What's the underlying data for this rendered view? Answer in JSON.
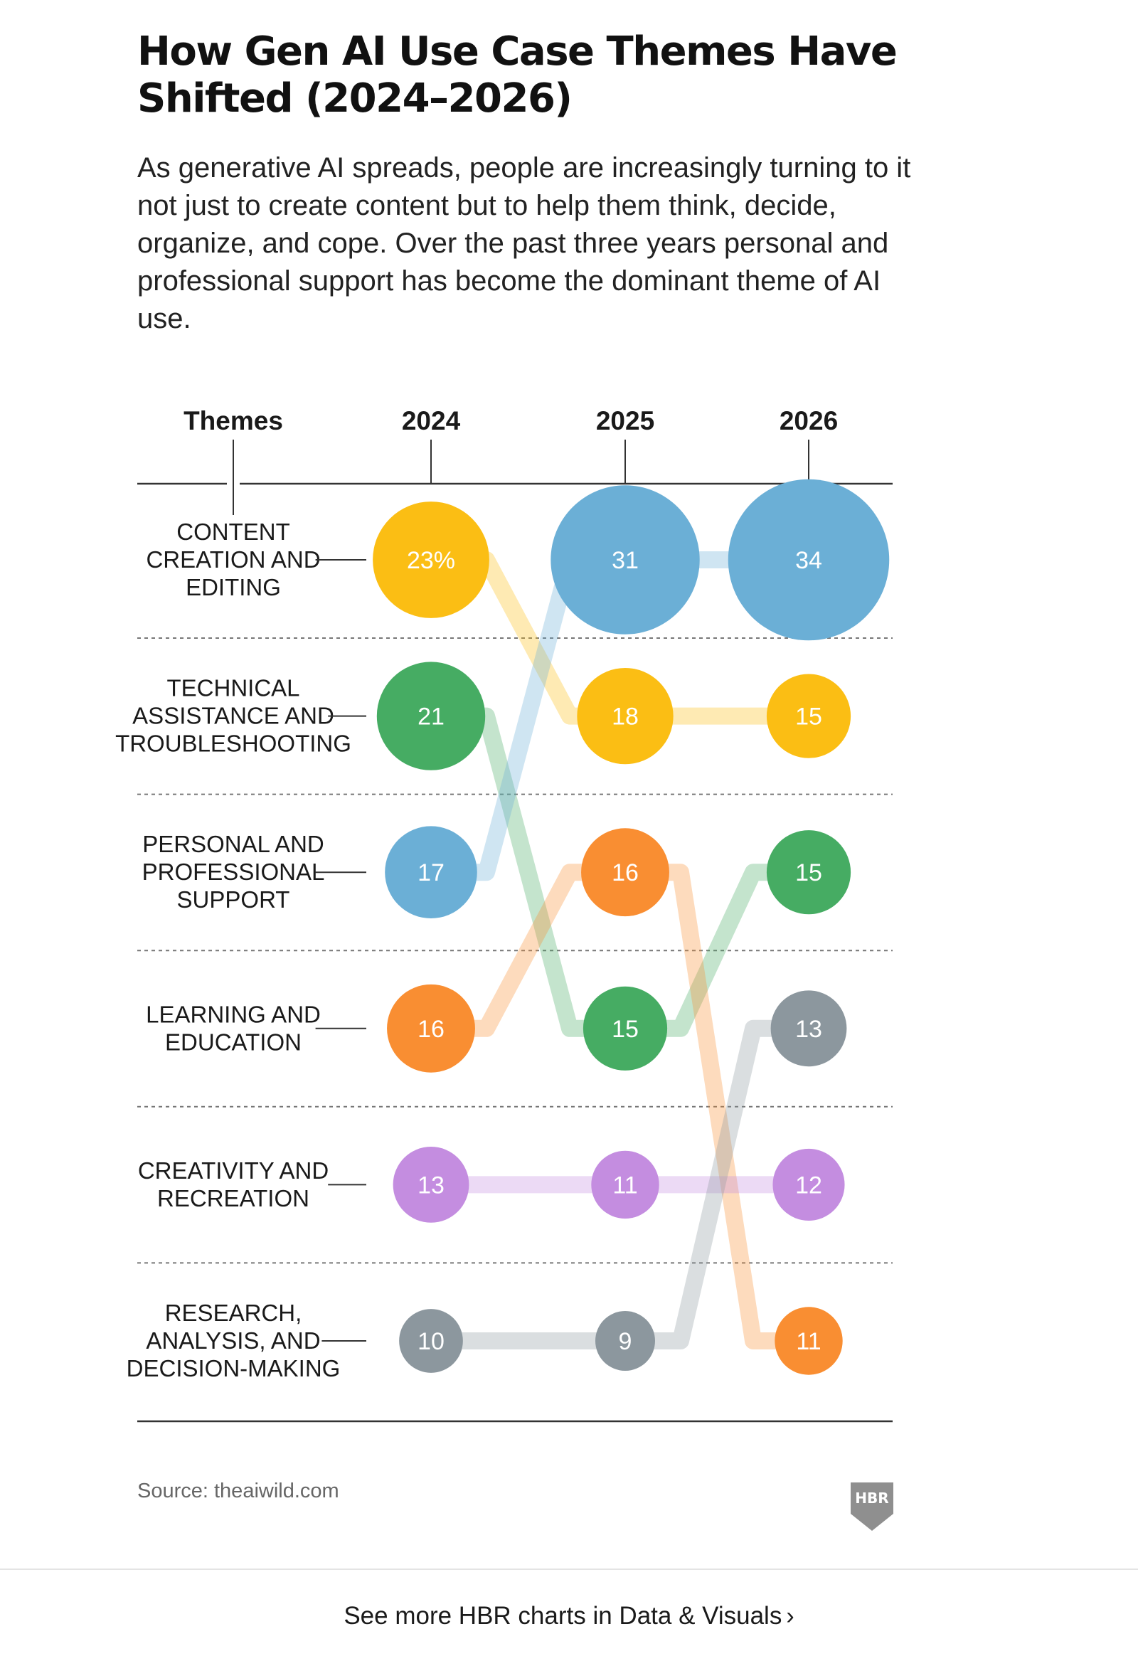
{
  "title": "How Gen AI Use Case Themes Have Shifted (2024–2026)",
  "subtitle": "As generative AI spreads, people are increasingly turning to it not just to create content but to help them think, decide, organize, and cope. Over the past three years personal and professional support has become the dominant theme of AI use.",
  "source": "Source: theaiwild.com",
  "logo_text": "HBR",
  "footer_link": "See more HBR charts in Data & Visuals",
  "footer_chevron": "›",
  "colors": {
    "yellow": "#FBBE14",
    "blue": "#6BAFD6",
    "green": "#46AC63",
    "orange": "#F98E32",
    "purple": "#C48DE0",
    "gray": "#8C979E"
  },
  "chart_data": {
    "type": "table",
    "column_header": "Themes",
    "years": [
      "2024",
      "2025",
      "2026"
    ],
    "ranks": [
      "CONTENT CREATION AND EDITING",
      "TECHNICAL ASSISTANCE AND TROUBLESHOOTING",
      "PERSONAL AND PROFESSIONAL SUPPORT",
      "LEARNING AND EDUCATION",
      "CREATIVITY AND RECREATION",
      "RESEARCH, ANALYSIS, AND DECISION-MAKING"
    ],
    "series": [
      {
        "color": "yellow",
        "values": [
          23,
          18,
          15
        ],
        "labels": [
          "23%",
          "18",
          "15"
        ],
        "rank": [
          1,
          2,
          2
        ]
      },
      {
        "color": "green",
        "values": [
          21,
          15,
          15
        ],
        "labels": [
          "21",
          "15",
          "15"
        ],
        "rank": [
          2,
          4,
          3
        ]
      },
      {
        "color": "blue",
        "values": [
          17,
          31,
          34
        ],
        "labels": [
          "17",
          "31",
          "34"
        ],
        "rank": [
          3,
          1,
          1
        ]
      },
      {
        "color": "orange",
        "values": [
          16,
          16,
          11
        ],
        "labels": [
          "16",
          "16",
          "11"
        ],
        "rank": [
          4,
          3,
          6
        ]
      },
      {
        "color": "purple",
        "values": [
          13,
          11,
          12
        ],
        "labels": [
          "13",
          "11",
          "12"
        ],
        "rank": [
          5,
          5,
          5
        ]
      },
      {
        "color": "gray",
        "values": [
          10,
          9,
          13
        ],
        "labels": [
          "10",
          "9",
          "13"
        ],
        "rank": [
          6,
          6,
          4
        ]
      }
    ]
  }
}
